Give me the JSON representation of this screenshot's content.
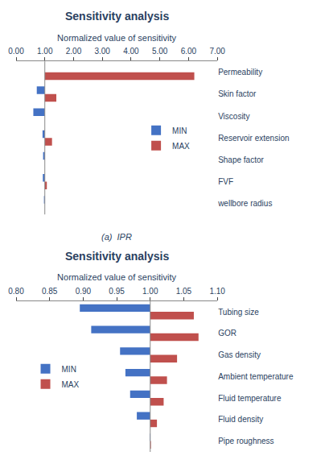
{
  "chart_data": [
    {
      "type": "bar",
      "orientation": "horizontal",
      "title": "Sensitivity analysis",
      "xlabel": "Normalized value of sensitivity",
      "subtitle": "(a)  IPR",
      "categories": [
        "Permeability",
        "Skin factor",
        "Viscosity",
        "Reservoir extension",
        "Shape factor",
        "FVF",
        "wellbore radius"
      ],
      "base": 1.0,
      "series": [
        {
          "name": "MIN",
          "color": "#4472C4",
          "values": [
            1.0,
            0.72,
            0.6,
            0.92,
            0.94,
            0.93,
            0.97
          ]
        },
        {
          "name": "MAX",
          "color": "#C0504D",
          "values": [
            6.2,
            1.4,
            1.0,
            1.25,
            1.0,
            1.07,
            1.0
          ]
        }
      ],
      "xlim": [
        0.0,
        7.0
      ],
      "xticks": [
        {
          "value": 0.0,
          "label": "0.00"
        },
        {
          "value": 1.0,
          "label": "1.00"
        },
        {
          "value": 2.0,
          "label": "2.00"
        },
        {
          "value": 3.0,
          "label": "3.00"
        },
        {
          "value": 4.0,
          "label": "4.00"
        },
        {
          "value": 5.0,
          "label": "5.00"
        },
        {
          "value": 6.0,
          "label": "6.00"
        },
        {
          "value": 7.0,
          "label": "7.00"
        }
      ],
      "grid": false,
      "legend": "right"
    },
    {
      "type": "bar",
      "orientation": "horizontal",
      "title": "Sensitivity analysis",
      "xlabel": "Normalized value of sensitivity",
      "categories": [
        "Tubing size",
        "GOR",
        "Gas density",
        "Ambient temperature",
        "Fluid temperature",
        "Fluid density",
        "Pipe roughness"
      ],
      "base": 1.0,
      "series": [
        {
          "name": "MIN",
          "color": "#4472C4",
          "values": [
            0.895,
            0.912,
            0.955,
            0.963,
            0.97,
            0.98,
            0.9992
          ]
        },
        {
          "name": "MAX",
          "color": "#C0504D",
          "values": [
            1.065,
            1.072,
            1.04,
            1.025,
            1.02,
            1.01,
            1.001
          ]
        }
      ],
      "xlim": [
        0.8,
        1.1
      ],
      "xticks": [
        {
          "value": 0.8,
          "label": "0.80"
        },
        {
          "value": 0.85,
          "label": "0.85"
        },
        {
          "value": 0.9,
          "label": "0.90"
        },
        {
          "value": 0.95,
          "label": "0.95"
        },
        {
          "value": 1.0,
          "label": "1.00"
        },
        {
          "value": 1.05,
          "label": "1.05"
        },
        {
          "value": 1.1,
          "label": "1.10"
        }
      ],
      "grid": false,
      "legend": "left"
    }
  ]
}
